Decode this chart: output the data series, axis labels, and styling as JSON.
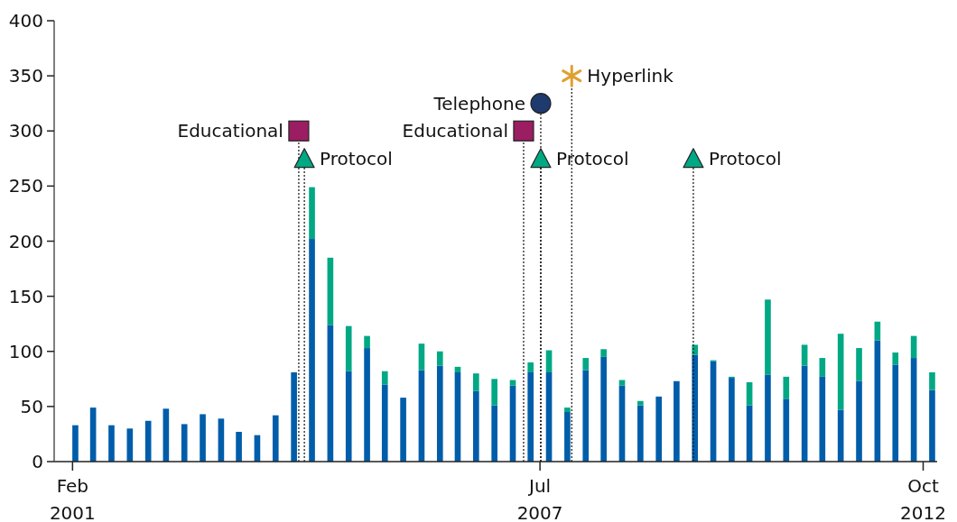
{
  "chart_data": {
    "type": "bar",
    "stacked": true,
    "x": [
      "2001-02-15",
      "2001-05-15",
      "2001-08-15",
      "2001-11-15",
      "2002-02-15",
      "2002-05-15",
      "2002-08-15",
      "2002-11-15",
      "2003-02-15",
      "2003-05-15",
      "2003-08-15",
      "2003-11-15",
      "2004-02-15",
      "2004-05-15",
      "2004-08-15",
      "2004-11-15",
      "2005-02-15",
      "2005-05-15",
      "2005-08-15",
      "2005-11-15",
      "2006-02-15",
      "2006-05-15",
      "2006-08-15",
      "2006-11-15",
      "2007-02-15",
      "2007-05-15",
      "2007-08-15",
      "2007-11-15",
      "2008-02-15",
      "2008-05-15",
      "2008-08-15",
      "2008-11-15",
      "2009-02-15",
      "2009-05-15",
      "2009-08-15",
      "2009-11-15",
      "2010-02-15",
      "2010-05-15",
      "2010-08-15",
      "2010-11-15",
      "2011-02-15",
      "2011-05-15",
      "2011-08-15",
      "2011-11-15",
      "2012-02-15",
      "2012-05-15",
      "2012-08-15",
      "2012-11-15"
    ],
    "series": [
      {
        "color": "#005daa",
        "values": [
          33,
          49,
          33,
          30,
          37,
          48,
          34,
          43,
          39,
          27,
          24,
          42,
          81,
          202,
          124,
          82,
          103,
          70,
          58,
          83,
          87,
          81,
          64,
          51,
          69,
          81,
          81,
          45,
          83,
          95,
          69,
          51,
          59,
          73,
          97,
          91,
          76,
          51,
          79,
          57,
          87,
          77,
          47,
          73,
          110,
          88,
          94,
          65
        ]
      },
      {
        "color": "#00a884",
        "values": [
          0,
          0,
          0,
          0,
          0,
          0,
          0,
          0,
          0,
          0,
          0,
          0,
          0,
          47,
          61,
          41,
          11,
          12,
          0,
          24,
          13,
          5,
          16,
          24,
          5,
          9,
          20,
          4,
          11,
          7,
          5,
          4,
          0,
          0,
          9,
          1,
          1,
          21,
          68,
          20,
          19,
          17,
          69,
          30,
          17,
          11,
          20,
          16
        ]
      },
      {
        "type": "lollipop",
        "name": "Educational",
        "color": "#9b1d62",
        "marker": "square",
        "line_style": "dotted",
        "x": [
          "2004-03-10",
          "2007-04-10"
        ],
        "values": [
          300,
          300
        ]
      },
      {
        "type": "lollipop",
        "name": "Protocol",
        "color": "#00a884",
        "marker": "triangle",
        "line_style": "dotted",
        "x": [
          "2004-04-07",
          "2007-07-05",
          "2009-08-07"
        ],
        "values": [
          275,
          275,
          275
        ]
      },
      {
        "type": "lollipop",
        "name": "Telephone",
        "color": "#1e3a6e",
        "marker": "circle",
        "line_style": "dotted",
        "x": [
          "2007-07-05"
        ],
        "values": [
          325
        ]
      },
      {
        "type": "lollipop",
        "name": "Hyperlink",
        "color": "#e0a030",
        "marker": "cross",
        "line_style": "dotted",
        "x": [
          "2007-12-07"
        ],
        "values": [
          350
        ]
      }
    ],
    "xlim": [
      "2000-11-01",
      "2012-12-10"
    ],
    "xticks": [
      {
        "value": "2001-02-01",
        "label": "Feb 2001"
      },
      {
        "value": "2007-07-01",
        "label": "Jul 2007"
      },
      {
        "value": "2012-10-01",
        "label": "Oct 2012"
      }
    ],
    "ylim": [
      0,
      400
    ],
    "yticks": [
      0,
      50,
      100,
      150,
      200,
      250,
      300,
      350,
      400
    ]
  }
}
